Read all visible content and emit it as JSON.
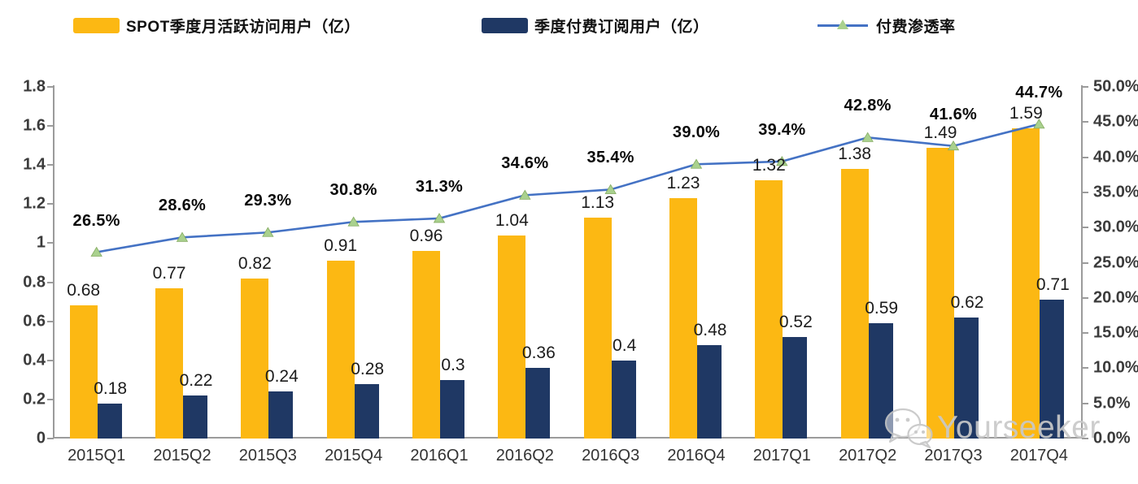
{
  "legend": [
    {
      "label": "SPOT季度月活跃访问用户（亿）",
      "type": "bar",
      "color": "#FCB813"
    },
    {
      "label": "季度付费订阅用户（亿）",
      "type": "bar",
      "color": "#1F3864"
    },
    {
      "label": "付费渗透率",
      "type": "line",
      "color": "#4472C4",
      "marker_color": "#A9D18E"
    }
  ],
  "watermark": {
    "text": "Yourseeker",
    "icon": "wechat-icon"
  },
  "chart_data": {
    "type": "bar+line combo",
    "title": "",
    "categories": [
      "2015Q1",
      "2015Q2",
      "2015Q3",
      "2015Q4",
      "2016Q1",
      "2016Q2",
      "2016Q3",
      "2016Q4",
      "2017Q1",
      "2017Q2",
      "2017Q3",
      "2017Q4"
    ],
    "series": [
      {
        "name": "SPOT季度月活跃访问用户（亿）",
        "type": "bar",
        "axis": "left",
        "color": "#FCB813",
        "values": [
          0.68,
          0.77,
          0.82,
          0.91,
          0.96,
          1.04,
          1.13,
          1.23,
          1.32,
          1.38,
          1.49,
          1.59
        ],
        "labels": [
          "0.68",
          "0.77",
          "0.82",
          "0.91",
          "0.96",
          "1.04",
          "1.13",
          "1.23",
          "1.32",
          "1.38",
          "1.49",
          "1.59"
        ]
      },
      {
        "name": "季度付费订阅用户（亿）",
        "type": "bar",
        "axis": "left",
        "color": "#1F3864",
        "values": [
          0.18,
          0.22,
          0.24,
          0.28,
          0.3,
          0.36,
          0.4,
          0.48,
          0.52,
          0.59,
          0.62,
          0.71
        ],
        "labels": [
          "0.18",
          "0.22",
          "0.24",
          "0.28",
          "0.3",
          "0.36",
          "0.4",
          "0.48",
          "0.52",
          "0.59",
          "0.62",
          "0.71"
        ]
      },
      {
        "name": "付费渗透率",
        "type": "line",
        "axis": "right",
        "color": "#4472C4",
        "marker": "triangle",
        "marker_color": "#A9D18E",
        "values": [
          26.5,
          28.6,
          29.3,
          30.8,
          31.3,
          34.6,
          35.4,
          39.0,
          39.4,
          42.8,
          41.6,
          44.7
        ],
        "labels": [
          "26.5%",
          "28.6%",
          "29.3%",
          "30.8%",
          "31.3%",
          "34.6%",
          "35.4%",
          "39.0%",
          "39.4%",
          "42.8%",
          "41.6%",
          "44.7%"
        ]
      }
    ],
    "left_axis": {
      "min": 0,
      "max": 1.8,
      "step": 0.2,
      "ticks": [
        {
          "v": 1.8,
          "label": "1.8"
        },
        {
          "v": 1.6,
          "label": "1.6"
        },
        {
          "v": 1.4,
          "label": "1.4"
        },
        {
          "v": 1.2,
          "label": "1.2"
        },
        {
          "v": 1.0,
          "label": "1"
        },
        {
          "v": 0.8,
          "label": "0.8"
        },
        {
          "v": 0.6,
          "label": "0.6"
        },
        {
          "v": 0.4,
          "label": "0.4"
        },
        {
          "v": 0.2,
          "label": "0.2"
        },
        {
          "v": 0,
          "label": "0"
        }
      ]
    },
    "right_axis": {
      "min": 0,
      "max": 50,
      "step": 5,
      "ticks": [
        {
          "v": 50,
          "label": "50.0%"
        },
        {
          "v": 45,
          "label": "45.0%"
        },
        {
          "v": 40,
          "label": "40.0%"
        },
        {
          "v": 35,
          "label": "35.0%"
        },
        {
          "v": 30,
          "label": "30.0%"
        },
        {
          "v": 25,
          "label": "25.0%"
        },
        {
          "v": 20,
          "label": "20.0%"
        },
        {
          "v": 15,
          "label": "15.0%"
        },
        {
          "v": 10,
          "label": "10.0%"
        },
        {
          "v": 5,
          "label": "5.0%"
        },
        {
          "v": 0,
          "label": "0.0%"
        }
      ]
    },
    "grid": false,
    "legend_position": "top"
  }
}
